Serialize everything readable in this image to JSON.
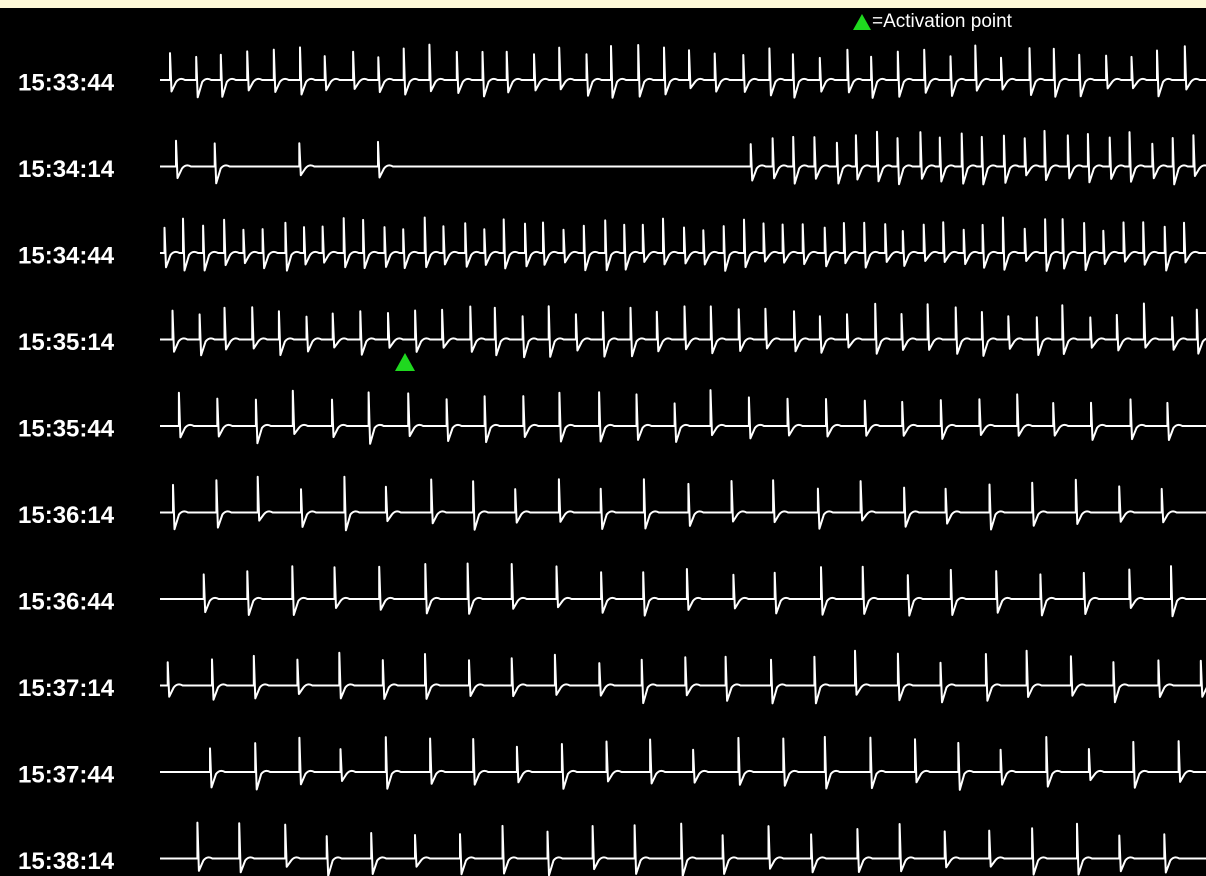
{
  "legend": {
    "label": "=Activation point"
  },
  "rows": [
    {
      "time": "15:33:44"
    },
    {
      "time": "15:34:14"
    },
    {
      "time": "15:34:44"
    },
    {
      "time": "15:35:14"
    },
    {
      "time": "15:35:44"
    },
    {
      "time": "15:36:14"
    },
    {
      "time": "15:36:44"
    },
    {
      "time": "15:37:14"
    },
    {
      "time": "15:37:44"
    },
    {
      "time": "15:38:14"
    }
  ]
}
